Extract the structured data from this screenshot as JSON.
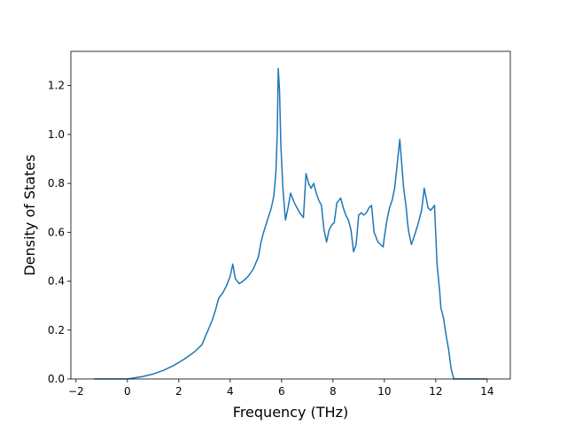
{
  "chart_data": {
    "type": "line",
    "title": "",
    "xlabel": "Frequency (THz)",
    "ylabel": "Density of States",
    "xlim": [
      -2.2,
      14.9
    ],
    "ylim": [
      0.0,
      1.34
    ],
    "xticks": [
      -2,
      0,
      2,
      4,
      6,
      8,
      10,
      12,
      14
    ],
    "yticks": [
      0.0,
      0.2,
      0.4,
      0.6,
      0.8,
      1.0,
      1.2
    ],
    "xtick_labels": [
      "−2",
      "0",
      "2",
      "4",
      "6",
      "8",
      "10",
      "12",
      "14"
    ],
    "ytick_labels": [
      "0.0",
      "0.2",
      "0.4",
      "0.6",
      "0.8",
      "1.0",
      "1.2"
    ],
    "grid": false,
    "line_color": "#1f77b4",
    "series": [
      {
        "x": [
          -1.3,
          -1.0,
          -0.5,
          0.0,
          0.3,
          0.6,
          1.0,
          1.4,
          1.8,
          2.2,
          2.6,
          2.9,
          3.1,
          3.3,
          3.45,
          3.55,
          3.7,
          3.85,
          4.0,
          4.1,
          4.2,
          4.35,
          4.5,
          4.7,
          4.9,
          5.1,
          5.2,
          5.3,
          5.45,
          5.6,
          5.7,
          5.78,
          5.83,
          5.87,
          5.92,
          5.97,
          6.05,
          6.15,
          6.25,
          6.35,
          6.5,
          6.6,
          6.7,
          6.85,
          6.95,
          7.0,
          7.05,
          7.15,
          7.25,
          7.35,
          7.45,
          7.55,
          7.65,
          7.75,
          7.85,
          7.95,
          8.05,
          8.15,
          8.3,
          8.4,
          8.5,
          8.6,
          8.7,
          8.8,
          8.9,
          9.0,
          9.1,
          9.2,
          9.3,
          9.4,
          9.5,
          9.6,
          9.75,
          9.85,
          9.95,
          10.0,
          10.1,
          10.2,
          10.3,
          10.4,
          10.6,
          10.75,
          10.85,
          10.9,
          10.95,
          11.05,
          11.15,
          11.3,
          11.45,
          11.55,
          11.7,
          11.8,
          11.88,
          11.95,
          12.05,
          12.15,
          12.2,
          12.3,
          12.4,
          12.5,
          12.6,
          12.7,
          12.75,
          12.85,
          13.5,
          14.0
        ],
        "y": [
          0.0,
          0.0,
          0.0,
          0.0,
          0.005,
          0.01,
          0.02,
          0.035,
          0.055,
          0.08,
          0.11,
          0.14,
          0.19,
          0.24,
          0.29,
          0.33,
          0.35,
          0.38,
          0.42,
          0.47,
          0.41,
          0.39,
          0.4,
          0.42,
          0.45,
          0.5,
          0.56,
          0.6,
          0.65,
          0.7,
          0.75,
          0.85,
          1.0,
          1.27,
          1.18,
          0.96,
          0.78,
          0.65,
          0.7,
          0.76,
          0.72,
          0.7,
          0.68,
          0.66,
          0.84,
          0.82,
          0.8,
          0.78,
          0.8,
          0.76,
          0.73,
          0.71,
          0.61,
          0.56,
          0.61,
          0.63,
          0.64,
          0.72,
          0.74,
          0.7,
          0.67,
          0.65,
          0.61,
          0.52,
          0.55,
          0.67,
          0.68,
          0.67,
          0.68,
          0.7,
          0.71,
          0.6,
          0.56,
          0.55,
          0.54,
          0.58,
          0.65,
          0.7,
          0.73,
          0.78,
          0.98,
          0.78,
          0.7,
          0.64,
          0.6,
          0.55,
          0.58,
          0.63,
          0.69,
          0.78,
          0.7,
          0.69,
          0.7,
          0.71,
          0.47,
          0.36,
          0.29,
          0.25,
          0.18,
          0.12,
          0.04,
          0.0,
          0.0,
          0.0,
          0.0,
          0.0
        ]
      }
    ]
  }
}
